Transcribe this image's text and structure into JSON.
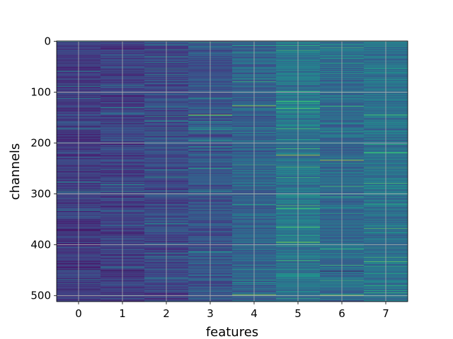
{
  "chart_data": {
    "type": "heatmap",
    "title": "",
    "xlabel": "features",
    "ylabel": "channels",
    "x_ticks": [
      "0",
      "1",
      "2",
      "3",
      "4",
      "5",
      "6",
      "7"
    ],
    "y_ticks": [
      "0",
      "100",
      "200",
      "300",
      "400",
      "500"
    ],
    "n_features": 8,
    "n_channels": 512,
    "xlim": [
      -0.5,
      7.5
    ],
    "ylim": [
      511.5,
      -0.5
    ],
    "y_axis_inverted": true,
    "colormap": "viridis",
    "grid": true,
    "grid_color": "#b0b0b0",
    "column_mean_intensity": [
      0.18,
      0.2,
      0.22,
      0.27,
      0.32,
      0.4,
      0.35,
      0.38
    ],
    "highlights": [
      {
        "feature": 3,
        "channel": 145,
        "value": 0.85
      },
      {
        "feature": 4,
        "channel": 127,
        "value": 0.88
      },
      {
        "feature": 4,
        "channel": 498,
        "value": 0.85
      },
      {
        "feature": 5,
        "channel": 132,
        "value": 0.75
      },
      {
        "feature": 5,
        "channel": 224,
        "value": 0.92
      },
      {
        "feature": 5,
        "channel": 395,
        "value": 0.85
      },
      {
        "feature": 6,
        "channel": 234,
        "value": 0.9
      },
      {
        "feature": 6,
        "channel": 499,
        "value": 0.85
      },
      {
        "feature": 7,
        "channel": 433,
        "value": 0.75
      },
      {
        "feature": 0,
        "channel": 449,
        "value": 0.02
      },
      {
        "feature": 1,
        "channel": 451,
        "value": 0.02
      },
      {
        "feature": 6,
        "channel": 452,
        "value": 0.02
      }
    ]
  }
}
